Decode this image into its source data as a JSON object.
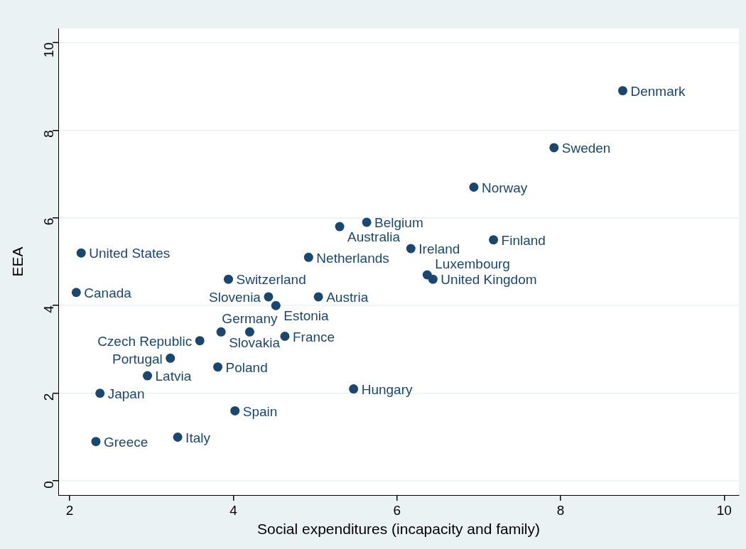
{
  "chart_data": {
    "type": "scatter",
    "xlabel": "Social expenditures (incapacity and family)",
    "ylabel": "EEA",
    "xlim": [
      1.86,
      10.18
    ],
    "ylim": [
      -0.32,
      10.32
    ],
    "xticks": [
      2,
      4,
      6,
      8,
      10
    ],
    "yticks": [
      0,
      2,
      4,
      6,
      8,
      10
    ],
    "grid": "y",
    "marker": "circle",
    "legend": false,
    "series": [
      {
        "color": "#1a476f",
        "x": [
          8.76,
          7.92,
          6.94,
          7.18,
          5.63,
          5.3,
          6.17,
          4.92,
          6.37,
          6.44,
          2.14,
          3.94,
          2.08,
          4.43,
          5.04,
          4.52,
          3.85,
          4.2,
          4.63,
          3.59,
          3.23,
          3.81,
          2.95,
          5.47,
          2.37,
          4.02,
          2.32,
          3.32
        ],
        "values": [
          8.9,
          7.6,
          6.7,
          5.5,
          5.9,
          5.8,
          5.3,
          5.1,
          4.7,
          4.6,
          5.2,
          4.6,
          4.3,
          4.2,
          4.2,
          4.0,
          3.4,
          3.4,
          3.3,
          3.2,
          2.8,
          2.6,
          2.4,
          2.1,
          2.0,
          1.6,
          0.9,
          1.0
        ],
        "value_labels": [
          "Denmark",
          "Sweden",
          "Norway",
          "Finland",
          "Belgium",
          "Australia",
          "Ireland",
          "Netherlands",
          "Luxembourg",
          "United Kingdom",
          "United States",
          "Switzerland",
          "Canada",
          "Slovenia",
          "Austria",
          "Estonia",
          "Slovakia",
          "Germany",
          "France",
          "Czech Republic",
          "Portugal",
          "Poland",
          "Latvia",
          "Hungary",
          "Japan",
          "Spain",
          "Greece",
          "Italy"
        ]
      }
    ]
  }
}
